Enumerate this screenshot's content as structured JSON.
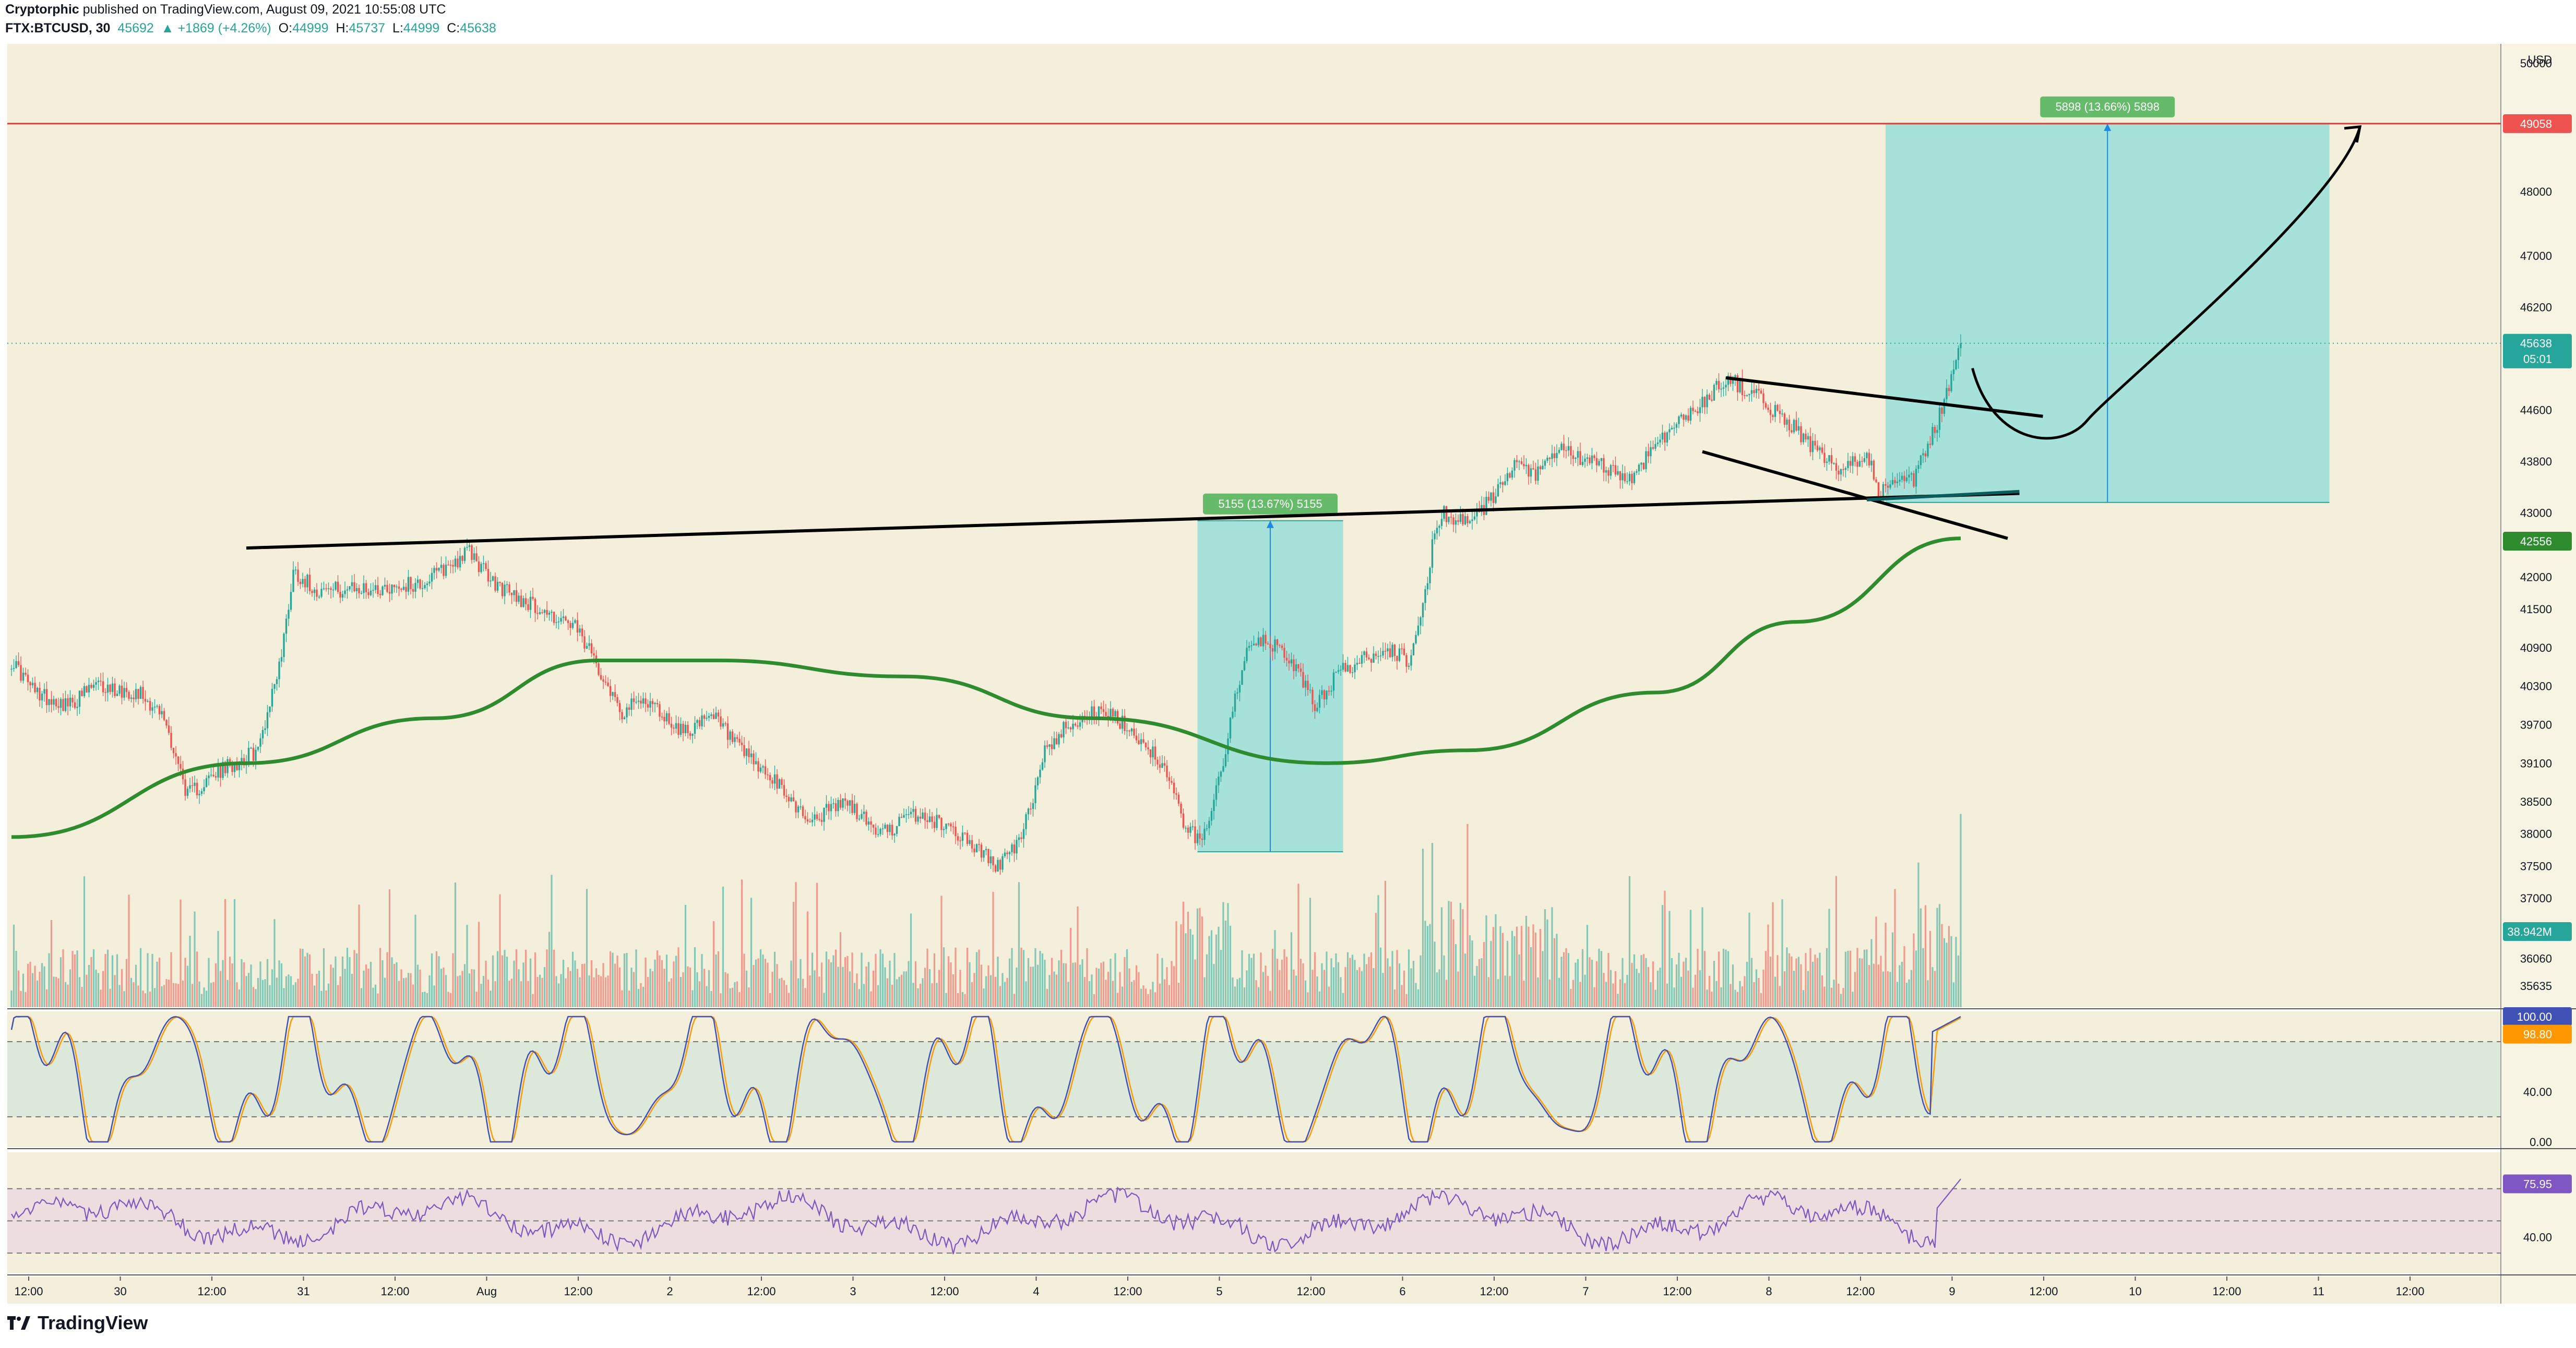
{
  "header": {
    "author": "Cryptorphic",
    "published_text": "published on TradingView.com, August 09, 2021 10:55:08 UTC",
    "symbol": "FTX:BTCUSD, 30",
    "open_value": "45692",
    "change": "+1869 (+4.26%)",
    "o_label": "O:",
    "o_value": "44999",
    "h_label": "H:",
    "h_value": "45737",
    "l_label": "L:",
    "l_value": "44999",
    "c_label": "C:",
    "c_value": "45638"
  },
  "branding": {
    "name": "TradingView",
    "logo_icon": "tradingview-logo-icon"
  },
  "colors": {
    "background": "#f3efda",
    "up": "#26a69a",
    "down": "#ef5350",
    "ema": "#2e8b2e",
    "box": "#9de0d8",
    "resistance": "#e53935",
    "stoch_k": "#3f51b5",
    "stoch_d": "#ff9800",
    "rsi": "#7e57c2"
  },
  "chart_data": {
    "type": "candlestick",
    "currency": "USD",
    "y_axis_ticks": [
      "50000",
      "49058",
      "48000",
      "47000",
      "46200",
      "45638",
      "44600",
      "43800",
      "43000",
      "42556",
      "42000",
      "41500",
      "40900",
      "40300",
      "39700",
      "39100",
      "38500",
      "38000",
      "37500",
      "37000",
      "36060",
      "35635"
    ],
    "x_axis_ticks": [
      "12:00",
      "30",
      "12:00",
      "31",
      "12:00",
      "Aug",
      "12:00",
      "2",
      "12:00",
      "3",
      "12:00",
      "4",
      "12:00",
      "5",
      "12:00",
      "6",
      "12:00",
      "7",
      "12:00",
      "8",
      "12:00",
      "9",
      "12:00",
      "10",
      "12:00",
      "11",
      "12:00"
    ],
    "price_ylim": [
      35300,
      50300
    ],
    "price_anchors": [
      [
        0,
        40700
      ],
      [
        10,
        40200
      ],
      [
        25,
        40000
      ],
      [
        35,
        40300
      ],
      [
        55,
        40200
      ],
      [
        65,
        39800
      ],
      [
        75,
        38600
      ],
      [
        90,
        39000
      ],
      [
        105,
        39300
      ],
      [
        115,
        40800
      ],
      [
        120,
        42100
      ],
      [
        130,
        41800
      ],
      [
        150,
        41800
      ],
      [
        175,
        41900
      ],
      [
        195,
        42400
      ],
      [
        205,
        41900
      ],
      [
        225,
        41500
      ],
      [
        240,
        41200
      ],
      [
        250,
        40600
      ],
      [
        260,
        39900
      ],
      [
        270,
        40100
      ],
      [
        285,
        39600
      ],
      [
        300,
        39800
      ],
      [
        310,
        39300
      ],
      [
        325,
        38800
      ],
      [
        340,
        38200
      ],
      [
        355,
        38500
      ],
      [
        370,
        38000
      ],
      [
        385,
        38300
      ],
      [
        400,
        38100
      ],
      [
        410,
        37800
      ],
      [
        420,
        37500
      ],
      [
        430,
        37900
      ],
      [
        440,
        39300
      ],
      [
        450,
        39700
      ],
      [
        460,
        39900
      ],
      [
        470,
        39800
      ],
      [
        480,
        39500
      ],
      [
        490,
        39100
      ],
      [
        500,
        38100
      ],
      [
        507,
        37850
      ],
      [
        512,
        38600
      ],
      [
        517,
        39300
      ],
      [
        522,
        40300
      ],
      [
        527,
        40900
      ],
      [
        535,
        41000
      ],
      [
        545,
        40700
      ],
      [
        555,
        40000
      ],
      [
        565,
        40500
      ],
      [
        575,
        40700
      ],
      [
        585,
        40900
      ],
      [
        595,
        40700
      ],
      [
        600,
        41300
      ],
      [
        605,
        42500
      ],
      [
        610,
        43000
      ],
      [
        620,
        42800
      ],
      [
        630,
        43200
      ],
      [
        640,
        43700
      ],
      [
        650,
        43600
      ],
      [
        660,
        44000
      ],
      [
        670,
        43800
      ],
      [
        680,
        43700
      ],
      [
        690,
        43500
      ],
      [
        700,
        44100
      ],
      [
        710,
        44400
      ],
      [
        720,
        44700
      ],
      [
        730,
        45100
      ],
      [
        740,
        44900
      ],
      [
        750,
        44600
      ],
      [
        760,
        44300
      ],
      [
        770,
        43900
      ],
      [
        780,
        43600
      ],
      [
        790,
        44000
      ],
      [
        795,
        43300
      ],
      [
        800,
        43400
      ],
      [
        810,
        43500
      ],
      [
        820,
        44400
      ],
      [
        830,
        45600
      ]
    ],
    "overlays": {
      "ema_line_points": [
        [
          0,
          37950
        ],
        [
          100,
          39100
        ],
        [
          180,
          39800
        ],
        [
          250,
          40700
        ],
        [
          300,
          40700
        ],
        [
          380,
          40450
        ],
        [
          460,
          39800
        ],
        [
          560,
          39100
        ],
        [
          620,
          39300
        ],
        [
          700,
          40200
        ],
        [
          760,
          41300
        ],
        [
          830,
          42600
        ]
      ],
      "support_trendline": {
        "from": [
          100,
          42450
        ],
        "to": [
          855,
          43300
        ]
      },
      "wedge_upper": {
        "from": [
          730,
          45100
        ],
        "to": [
          865,
          44500
        ]
      },
      "wedge_lower": {
        "from": [
          720,
          43950
        ],
        "to": [
          850,
          42600
        ]
      },
      "horizontal_resistance": 49058,
      "last_price_line": 45638,
      "projection_curve_start": [
        835,
        45250
      ]
    },
    "measure_boxes": [
      {
        "label": "5155 (13.67%) 5155",
        "x_range": [
          505,
          567
        ],
        "y_range": [
          37720,
          42875
        ]
      },
      {
        "label": "5898 (13.66%) 5898",
        "x_range": [
          798,
          987
        ],
        "y_range": [
          43160,
          49058
        ]
      }
    ],
    "price_badges": [
      {
        "text": "49058",
        "color": "#ef5350"
      },
      {
        "text": "45638",
        "sub": "05:01",
        "color": "#26a69a"
      },
      {
        "text": "42556",
        "color": "#2e8b2e"
      },
      {
        "text": "38.942M",
        "color": "#26a69a"
      }
    ],
    "stoch_panel": {
      "ticks": [
        "100.00",
        "98.80",
        "40.00",
        "0.00"
      ],
      "bands": [
        80,
        20
      ],
      "range": [
        0,
        100
      ]
    },
    "rsi_panel": {
      "ticks": [
        "75.95",
        "40.00"
      ],
      "bands": [
        70,
        30
      ],
      "range": [
        20,
        90
      ]
    }
  }
}
